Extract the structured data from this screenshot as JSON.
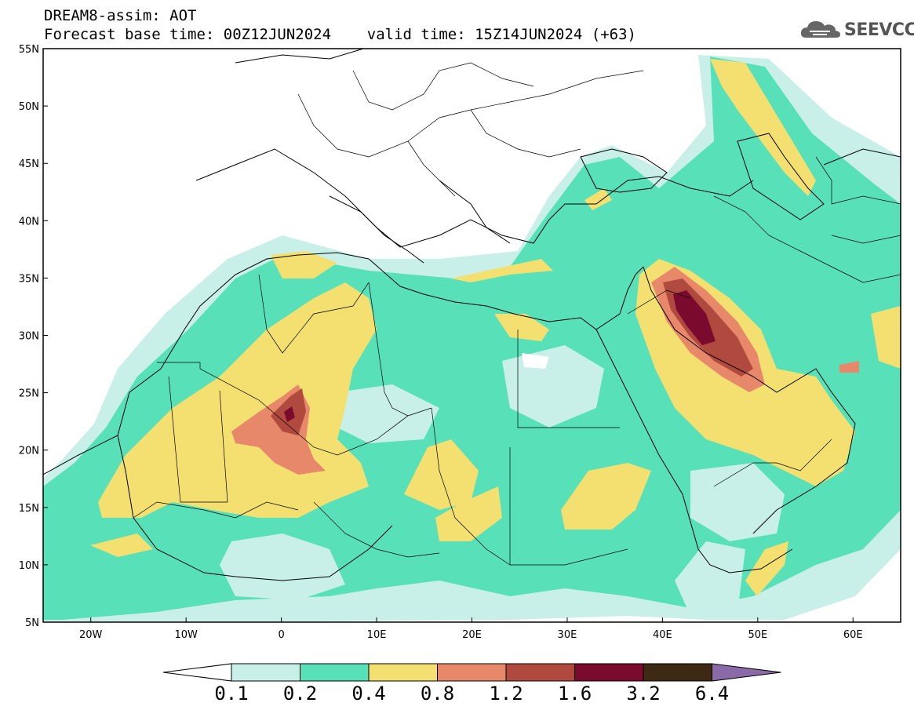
{
  "header": {
    "line1": "DREAM8-assim: AOT",
    "line2": "Forecast base time: 00Z12JUN2024    valid time: 15Z14JUN2024 (+63)"
  },
  "logo": {
    "text": "SEEVCCC",
    "icon": "cloud-icon"
  },
  "map": {
    "lon_range": [
      -25,
      65
    ],
    "lat_range": [
      5,
      55
    ],
    "lat_labels": [
      "55N",
      "50N",
      "45N",
      "40N",
      "35N",
      "30N",
      "25N",
      "20N",
      "15N",
      "10N",
      "5N"
    ],
    "lon_labels": [
      "20W",
      "10W",
      "0",
      "10E",
      "20E",
      "30E",
      "40E",
      "50E",
      "60E"
    ]
  },
  "colorbar": {
    "labels": [
      "0.1",
      "0.2",
      "0.4",
      "0.8",
      "1.2",
      "1.6",
      "3.2",
      "6.4"
    ],
    "colors": [
      "#ffffff",
      "#c8f0e8",
      "#58e0b8",
      "#f4e070",
      "#e8886a",
      "#b04a3e",
      "#7a0a2e",
      "#3e2a14",
      "#8a6aa8"
    ]
  }
}
